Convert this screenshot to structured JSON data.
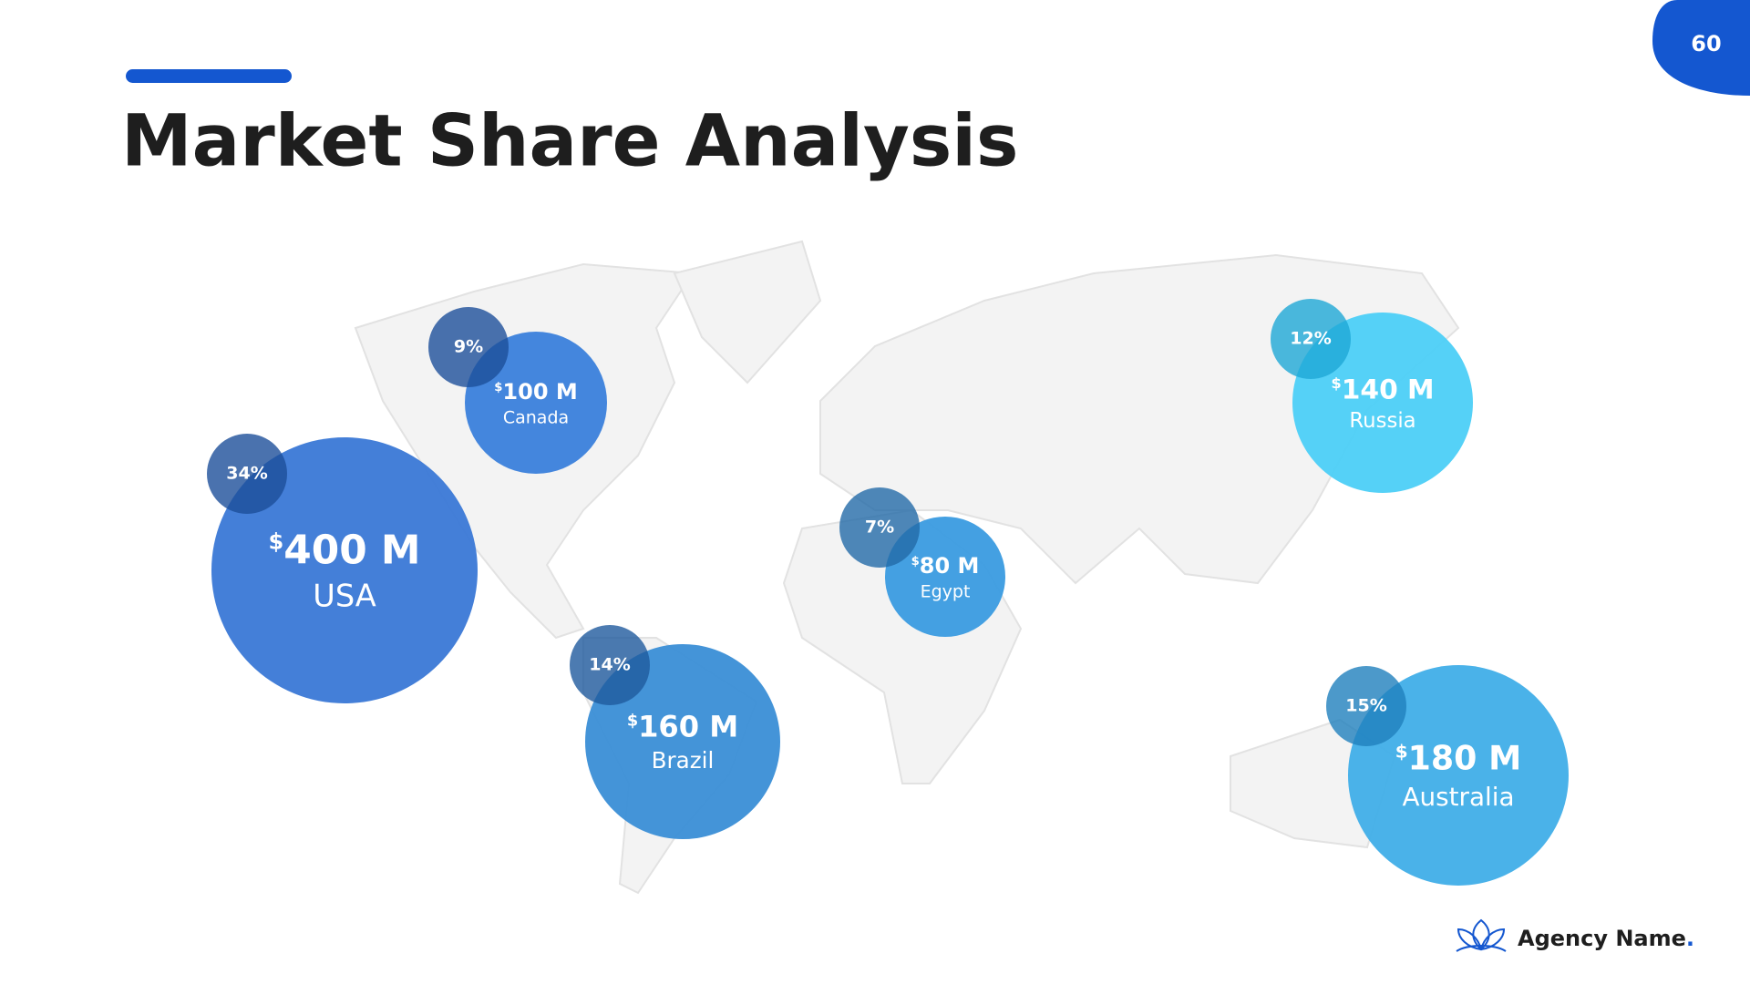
{
  "page_number": "60",
  "title": "Market Share Analysis",
  "currency": "$",
  "markets": [
    {
      "country": "USA",
      "amount": "400 M",
      "share": "34%"
    },
    {
      "country": "Canada",
      "amount": "100 M",
      "share": "9%"
    },
    {
      "country": "Brazil",
      "amount": "160 M",
      "share": "14%"
    },
    {
      "country": "Egypt",
      "amount": "80 M",
      "share": "7%"
    },
    {
      "country": "Russia",
      "amount": "140 M",
      "share": "12%"
    },
    {
      "country": "Australia",
      "amount": "180 M",
      "share": "15%"
    }
  ],
  "footer": {
    "brand": "Agency Name",
    "brand_dot": "."
  }
}
